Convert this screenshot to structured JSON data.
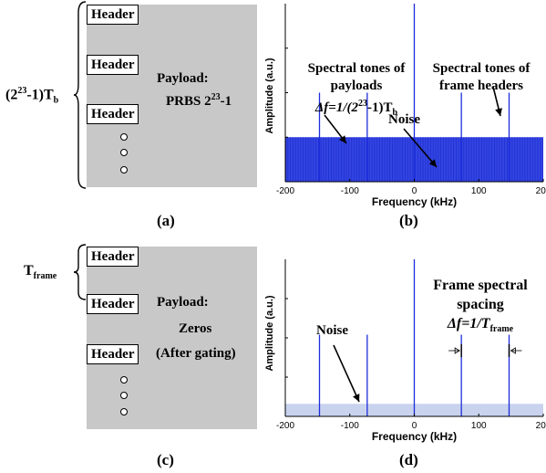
{
  "panel_a": {
    "header_label": "Header",
    "period_label": "(2^23-1)T_b",
    "period_main": "(2",
    "period_sup": "23",
    "period_mid": "-1)T",
    "period_sub": "b",
    "payload_line1": "Payload:",
    "payload_line2_main": "PRBS 2",
    "payload_line2_sup": "23",
    "payload_line2_end": "-1",
    "caption": "(a)"
  },
  "panel_b": {
    "ylabel": "Amplitude (a.u.)",
    "xlabel": "Frequency (kHz)",
    "ann_payload_1": "Spectral tones of",
    "ann_payload_2": "payloads",
    "ann_payload_3_a": "Δf=1/(2",
    "ann_payload_3_sup": "23",
    "ann_payload_3_b": "-1)T",
    "ann_payload_3_sub": "b",
    "ann_header_1": "Spectral tones of",
    "ann_header_2": "frame headers",
    "ann_noise": "Noise",
    "caption": "(b)",
    "colors": {
      "spectrum": "#1c2cdc",
      "noise_band": "#2233d6"
    }
  },
  "panel_c": {
    "header_label": "Header",
    "frame_main": "T",
    "frame_sub": "frame",
    "payload_line1": "Payload:",
    "payload_line2": "Zeros",
    "payload_line3": "(After gating)",
    "caption": "(c)"
  },
  "panel_d": {
    "ylabel": "Amplitude (a.u.)",
    "xlabel": "Frequency (kHz)",
    "ann_noise": "Noise",
    "ann_spacing_1": "Frame spectral",
    "ann_spacing_2": "spacing",
    "ann_spacing_3_a": "Δf=1/T",
    "ann_spacing_3_sub": "frame",
    "caption": "(d)",
    "colors": {
      "spectrum": "#1c2cdc",
      "noise_band": "#c9d3ee"
    }
  },
  "chart_data": [
    {
      "type": "line",
      "xlabel": "Frequency (kHz)",
      "ylabel": "Amplitude (a.u.)",
      "xlim": [
        -200,
        200
      ],
      "xticks": [
        -200,
        -100,
        0,
        100,
        200
      ],
      "tones_x": [
        -147,
        -73,
        0,
        73,
        147
      ],
      "tones_y": [
        0.5,
        0.5,
        1.0,
        0.5,
        0.5
      ],
      "noise_floor": [
        0.0,
        0.25
      ]
    },
    {
      "type": "line",
      "xlabel": "Frequency (kHz)",
      "ylabel": "Amplitude (a.u.)",
      "xlim": [
        -200,
        200
      ],
      "xticks": [
        -200,
        -100,
        0,
        100,
        200
      ],
      "tones_x": [
        -147,
        -73,
        0,
        73,
        147
      ],
      "tones_y": [
        0.52,
        0.52,
        1.0,
        0.52,
        0.52
      ],
      "noise_floor": [
        0.0,
        0.08
      ]
    }
  ]
}
